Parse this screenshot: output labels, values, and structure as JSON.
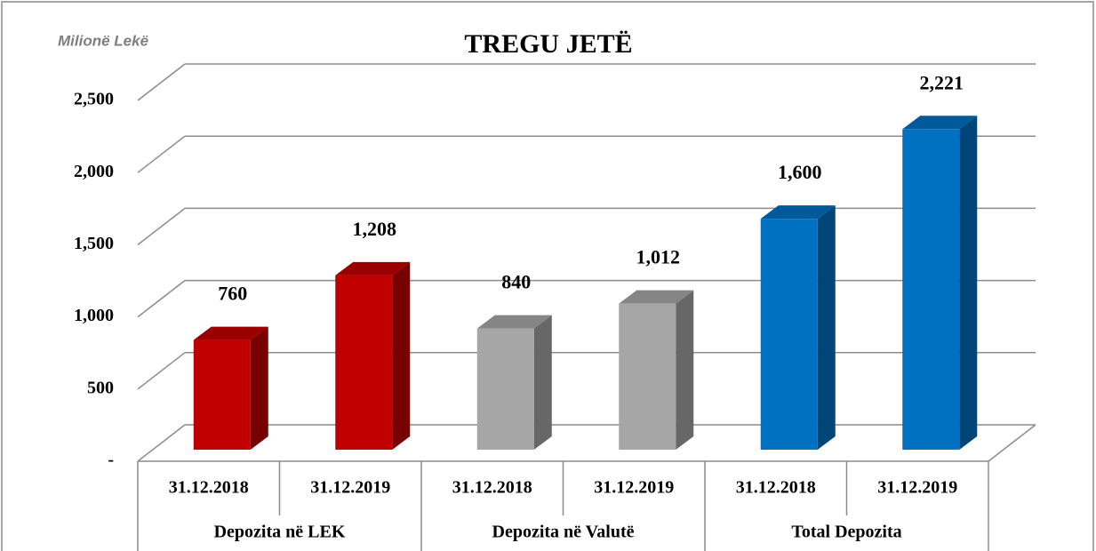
{
  "chart_data": {
    "type": "bar3d",
    "title": "TREGU JETË",
    "unit": "Milionë Lekë",
    "groups": [
      {
        "name": "Depozita në LEK",
        "categories": [
          "31.12.2018",
          "31.12.2019"
        ],
        "values": [
          760,
          1208
        ],
        "value_labels": [
          "760",
          "1,208"
        ],
        "color": "#c00000"
      },
      {
        "name": "Depozita në Valutë",
        "categories": [
          "31.12.2018",
          "31.12.2019"
        ],
        "values": [
          840,
          1012
        ],
        "value_labels": [
          "840",
          "1,012"
        ],
        "color": "#a6a6a6"
      },
      {
        "name": "Total Depozita",
        "categories": [
          "31.12.2018",
          "31.12.2019"
        ],
        "values": [
          1600,
          2221
        ],
        "value_labels": [
          "1,600",
          "2,221"
        ],
        "color": "#0070c0"
      }
    ],
    "ylim": [
      0,
      2500
    ],
    "yticks": [
      {
        "value": 0,
        "label": "-"
      },
      500,
      {
        "value": 1000,
        "label": "1,000"
      },
      {
        "value": 1500,
        "label": "1,500"
      },
      {
        "value": 2000,
        "label": "2,000"
      },
      {
        "value": 2500,
        "label": "2,500"
      }
    ],
    "grid": true
  }
}
